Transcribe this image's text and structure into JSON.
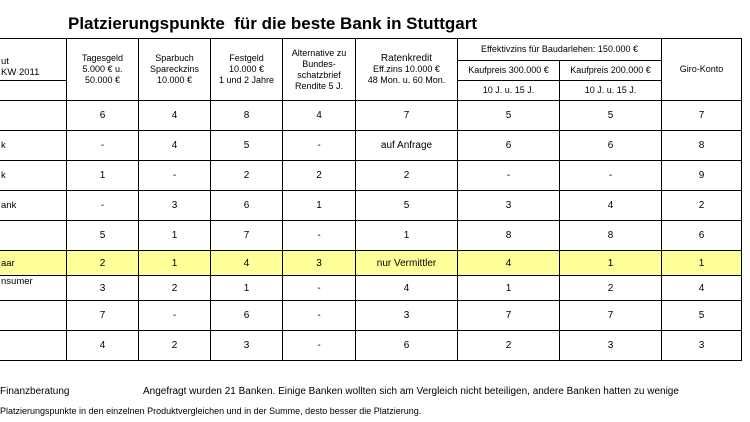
{
  "title": "Platzierungspunkte  für die beste Bank in Stuttgart",
  "header": {
    "institut": "ut",
    "kw": "KW 2011",
    "cols": [
      [
        "Tagesgeld",
        "5.000 € u.",
        "50.000 €"
      ],
      [
        "Sparbuch",
        "Spareckzins",
        "10.000 €"
      ],
      [
        "Festgeld",
        "10.000 €",
        "1 und 2 Jahre"
      ],
      [
        "Alternative zu",
        "Bundes-",
        "schatzbrief",
        "Rendite 5 J."
      ],
      [
        "Ratenkredit",
        "Eff.zins 10.000 €",
        "48 Mon. u. 60 Mon."
      ]
    ],
    "baudarlehen_group": "Effektivzins für Baudarlehen: 150.000 €",
    "kaufpreis1": "Kaufpreis 300.000 €",
    "kaufpreis2": "Kaufpreis 200.000 €",
    "laufzeit1": "10 J. u. 15 J.",
    "laufzeit2": "10 J. u. 15 J.",
    "giro": "Giro-Konto"
  },
  "rows": [
    {
      "name": "",
      "values": [
        "6",
        "4",
        "8",
        "4",
        "7",
        "5",
        "5",
        "7"
      ]
    },
    {
      "name": "k",
      "values": [
        "-",
        "4",
        "5",
        "-",
        "auf Anfrage",
        "6",
        "6",
        "8"
      ]
    },
    {
      "name": "k",
      "values": [
        "1",
        "-",
        "2",
        "2",
        "2",
        "-",
        "-",
        "9"
      ]
    },
    {
      "name": "ank",
      "values": [
        "-",
        "3",
        "6",
        "1",
        "5",
        "3",
        "4",
        "2"
      ]
    },
    {
      "name": "",
      "values": [
        "5",
        "1",
        "7",
        "-",
        "1",
        "8",
        "8",
        "6"
      ]
    },
    {
      "name": "aar",
      "values": [
        "2",
        "1",
        "4",
        "3",
        "nur Vermittler",
        "4",
        "1",
        "1"
      ],
      "highlight": true
    },
    {
      "name": "nsumer",
      "values": [
        "3",
        "2",
        "1",
        "-",
        "4",
        "1",
        "2",
        "4"
      ]
    },
    {
      "name": "",
      "values": [
        "7",
        "-",
        "6",
        "-",
        "3",
        "7",
        "7",
        "5"
      ]
    },
    {
      "name": "",
      "values": [
        "4",
        "2",
        "3",
        "-",
        "6",
        "2",
        "3",
        "3"
      ]
    }
  ],
  "footer": {
    "left": "Finanzberatung",
    "right": "Angefragt wurden 21 Banken. Einige Banken wollten sich am Vergleich nicht beteiligen, andere Banken hatten zu wenige",
    "note": "Platzierungspunkte in den einzelnen Produktvergleichen und in der Summe, desto besser die Platzierung."
  },
  "colors": {
    "highlight": "#ffff99",
    "border": "#000000"
  }
}
